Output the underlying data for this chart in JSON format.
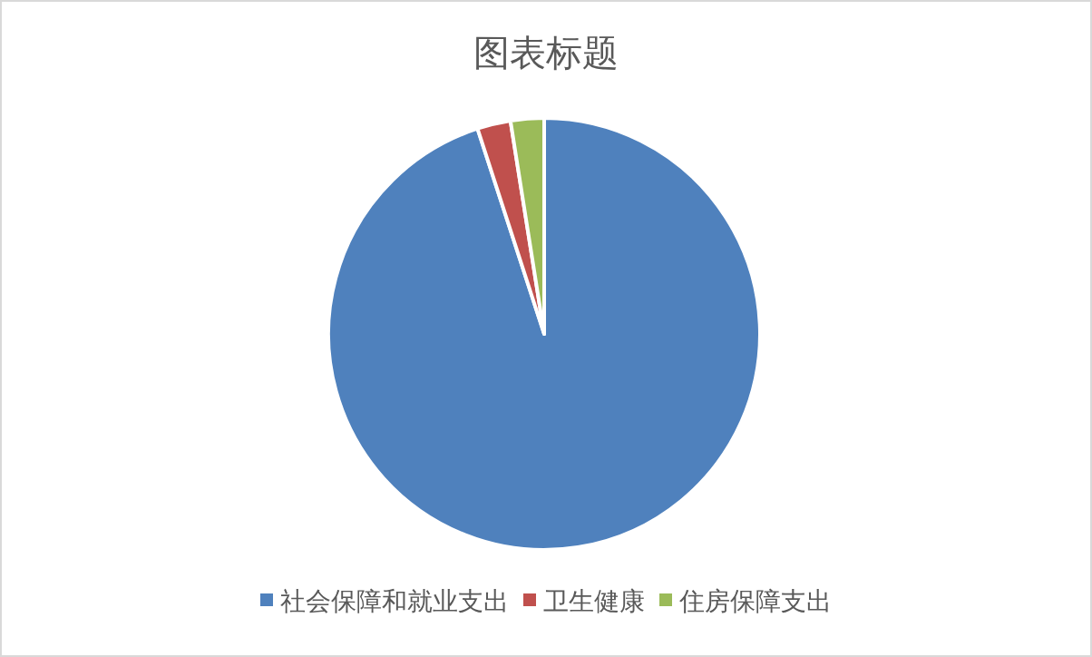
{
  "chart_data": {
    "type": "pie",
    "title": "图表标题",
    "categories": [
      "社会保障和就业支出",
      "卫生健康",
      "住房保障支出"
    ],
    "values": [
      95,
      2.5,
      2.5
    ],
    "colors": [
      "#4f81bd",
      "#c0504d",
      "#9bbb59"
    ],
    "legend": "bottom"
  }
}
